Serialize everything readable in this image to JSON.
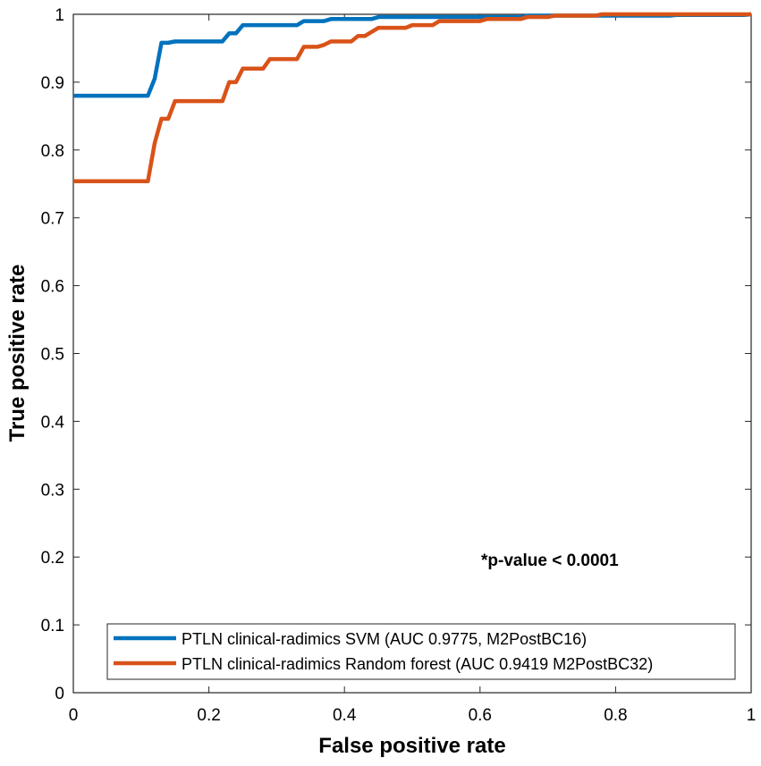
{
  "chart_data": {
    "type": "line",
    "title": "",
    "xlabel": "False positive rate",
    "ylabel": "True positive rate",
    "xlim": [
      0,
      1
    ],
    "ylim": [
      0,
      1
    ],
    "x_ticks": [
      "0",
      "0.2",
      "0.4",
      "0.6",
      "0.8",
      "1"
    ],
    "y_ticks": [
      "0",
      "0.1",
      "0.2",
      "0.3",
      "0.4",
      "0.5",
      "0.6",
      "0.7",
      "0.8",
      "0.9",
      "1"
    ],
    "grid": false,
    "legend_position": "bottom-right",
    "annotation": "*p-value < 0.0001",
    "series": [
      {
        "name": "PTLN clinical-radimics SVM (AUC 0.9775, M2PostBC16)",
        "color": "#0072BD",
        "x": [
          0,
          0.11,
          0.12,
          0.13,
          0.135,
          0.14,
          0.15,
          0.16,
          0.22,
          0.23,
          0.24,
          0.25,
          0.33,
          0.34,
          0.37,
          0.38,
          0.44,
          0.45,
          0.66,
          0.67,
          0.88,
          0.89,
          0.99,
          1.0
        ],
        "y": [
          0.88,
          0.88,
          0.905,
          0.958,
          0.958,
          0.958,
          0.96,
          0.96,
          0.96,
          0.972,
          0.972,
          0.984,
          0.984,
          0.99,
          0.99,
          0.993,
          0.993,
          0.996,
          0.996,
          0.998,
          0.998,
          0.999,
          0.999,
          1.0
        ]
      },
      {
        "name": "PTLN clinical-radimics Random forest (AUC 0.9419 M2PostBC32)",
        "color": "#D95319",
        "x": [
          0,
          0.11,
          0.12,
          0.13,
          0.14,
          0.15,
          0.22,
          0.23,
          0.24,
          0.25,
          0.28,
          0.29,
          0.33,
          0.34,
          0.36,
          0.37,
          0.38,
          0.41,
          0.42,
          0.43,
          0.45,
          0.46,
          0.49,
          0.5,
          0.53,
          0.54,
          0.6,
          0.61,
          0.66,
          0.67,
          0.7,
          0.71,
          0.77,
          0.78,
          1.0
        ],
        "y": [
          0.754,
          0.754,
          0.81,
          0.846,
          0.846,
          0.872,
          0.872,
          0.9,
          0.9,
          0.92,
          0.92,
          0.934,
          0.934,
          0.952,
          0.952,
          0.955,
          0.96,
          0.96,
          0.968,
          0.968,
          0.98,
          0.98,
          0.98,
          0.984,
          0.984,
          0.99,
          0.99,
          0.993,
          0.993,
          0.996,
          0.996,
          0.998,
          0.998,
          1.0,
          1.0
        ]
      }
    ]
  }
}
